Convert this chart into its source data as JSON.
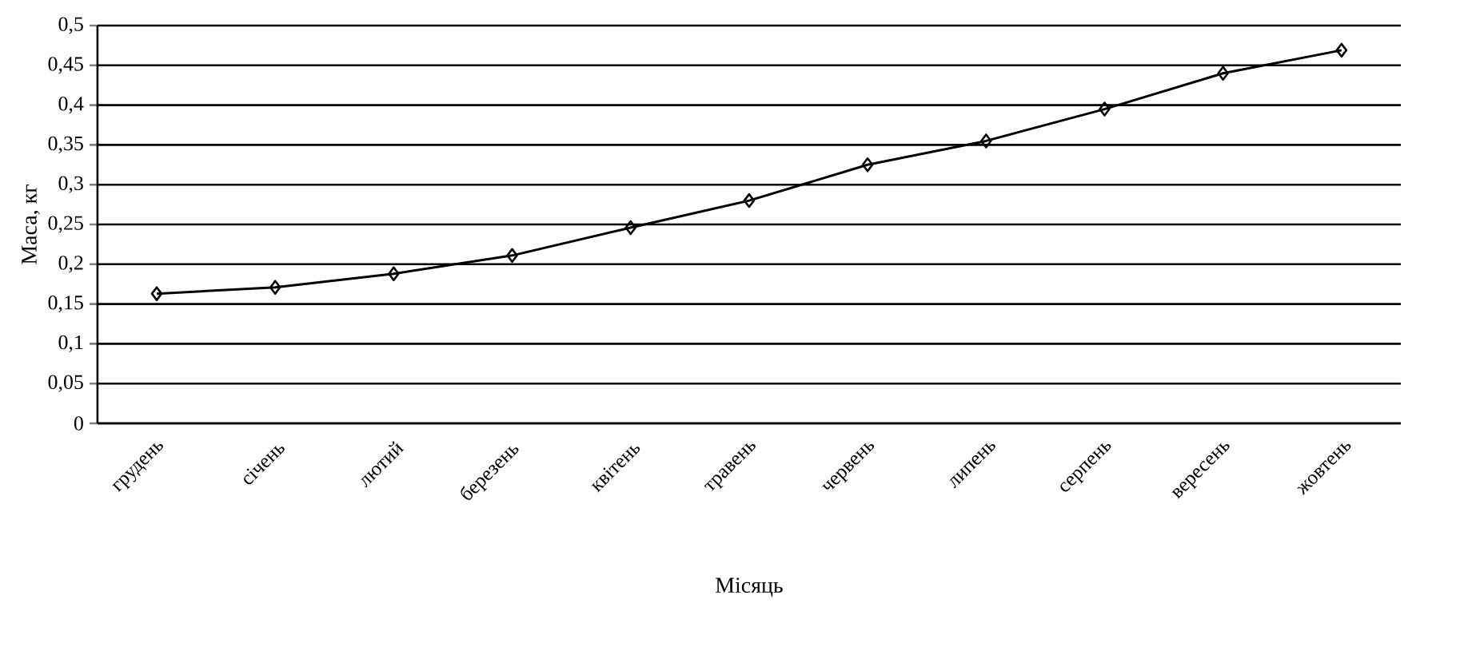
{
  "chart_data": {
    "type": "line",
    "xlabel": "Місяць",
    "ylabel": "Маса, кг",
    "categories": [
      "грудень",
      "січень",
      "лютий",
      "березень",
      "квітень",
      "травень",
      "червень",
      "липень",
      "серпень",
      "вересень",
      "жовтень"
    ],
    "series": [
      {
        "color": "#000000",
        "values": [
          0.163,
          0.171,
          0.188,
          0.211,
          0.246,
          0.28,
          0.325,
          0.355,
          0.395,
          0.44,
          0.469
        ]
      }
    ],
    "ylim": [
      0,
      0.5
    ],
    "yticks": [
      0,
      {
        "value": 0.05,
        "label": "0,05"
      },
      {
        "value": 0.1,
        "label": "0,1"
      },
      {
        "value": 0.15,
        "label": "0,15"
      },
      {
        "value": 0.2,
        "label": "0,2"
      },
      {
        "value": 0.25,
        "label": "0,25"
      },
      {
        "value": 0.3,
        "label": "0,3"
      },
      {
        "value": 0.35,
        "label": "0,35"
      },
      {
        "value": 0.4,
        "label": "0,4"
      },
      {
        "value": 0.45,
        "label": "0,45"
      },
      {
        "value": 0.5,
        "label": "0,5"
      }
    ],
    "grid": "y",
    "marker": "diamond",
    "line_style": "solid"
  }
}
